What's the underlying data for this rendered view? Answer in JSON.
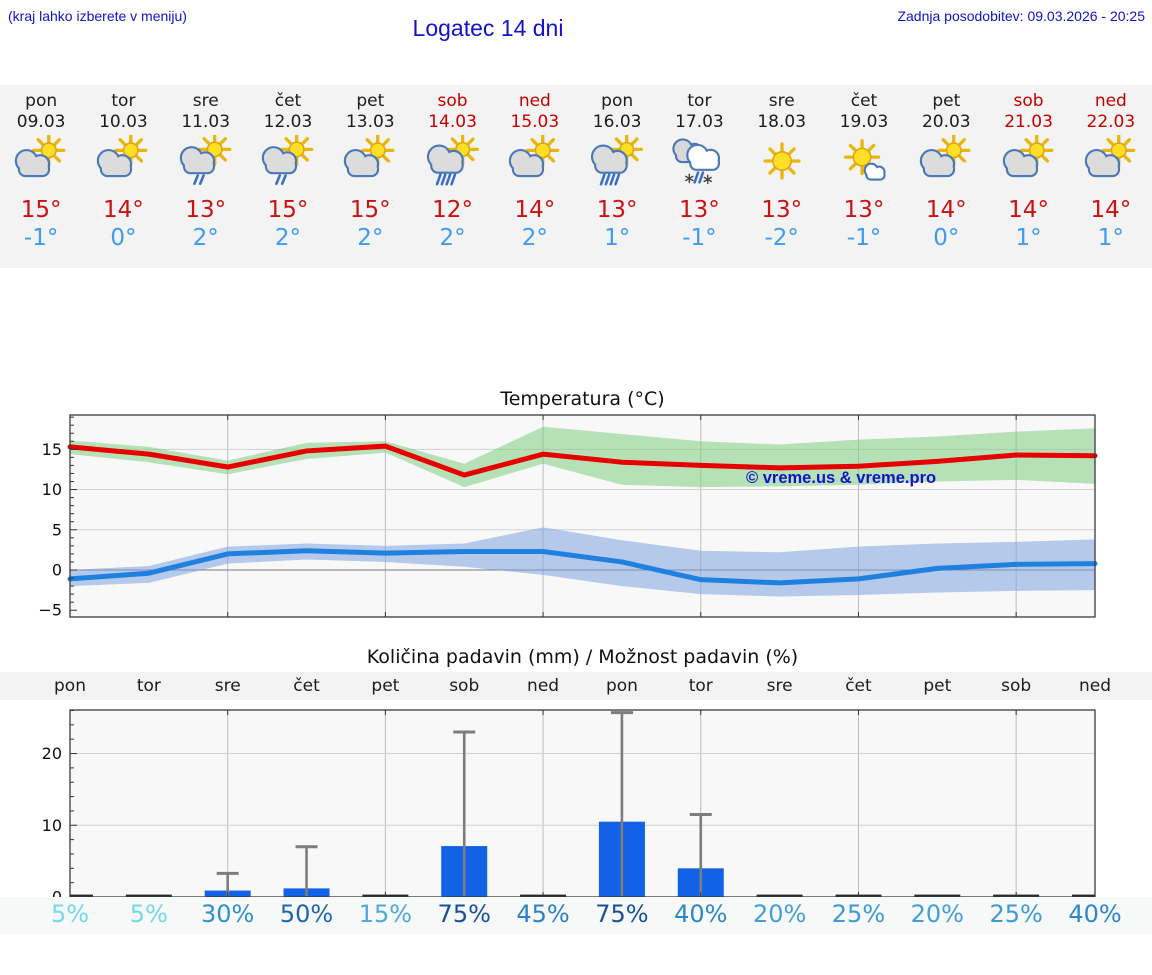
{
  "header": {
    "hint": "(kraj lahko izberete v meniju)",
    "title": "Logatec 14 dni",
    "updated": "Zadnja posodobitev: 09.03.2026 - 20:25"
  },
  "colors": {
    "accent_blue_text": "#1212cc",
    "weekend_red": "#c70000",
    "temp_max_red": "#cc1111",
    "temp_min_blue": "#3e9bef",
    "strip_background": "#f2f3f2"
  },
  "forecast": {
    "days": [
      {
        "name": "pon",
        "date": "09.03",
        "weekend": false,
        "icon": "partly",
        "tmax": "15°",
        "tmin": "-1°"
      },
      {
        "name": "tor",
        "date": "10.03",
        "weekend": false,
        "icon": "partly",
        "tmax": "14°",
        "tmin": "0°"
      },
      {
        "name": "sre",
        "date": "11.03",
        "weekend": false,
        "icon": "partly-light-rain",
        "tmax": "13°",
        "tmin": "2°"
      },
      {
        "name": "čet",
        "date": "12.03",
        "weekend": false,
        "icon": "partly-light-rain",
        "tmax": "15°",
        "tmin": "2°"
      },
      {
        "name": "pet",
        "date": "13.03",
        "weekend": false,
        "icon": "partly",
        "tmax": "15°",
        "tmin": "2°"
      },
      {
        "name": "sob",
        "date": "14.03",
        "weekend": true,
        "icon": "partly-rain",
        "tmax": "12°",
        "tmin": "2°"
      },
      {
        "name": "ned",
        "date": "15.03",
        "weekend": true,
        "icon": "partly",
        "tmax": "14°",
        "tmin": "2°"
      },
      {
        "name": "pon",
        "date": "16.03",
        "weekend": false,
        "icon": "partly-rain",
        "tmax": "13°",
        "tmin": "1°"
      },
      {
        "name": "tor",
        "date": "17.03",
        "weekend": false,
        "icon": "cloudy-sleet",
        "tmax": "13°",
        "tmin": "-1°"
      },
      {
        "name": "sre",
        "date": "18.03",
        "weekend": false,
        "icon": "sunny",
        "tmax": "13°",
        "tmin": "-2°"
      },
      {
        "name": "čet",
        "date": "19.03",
        "weekend": false,
        "icon": "mostly-sunny",
        "tmax": "13°",
        "tmin": "-1°"
      },
      {
        "name": "pet",
        "date": "20.03",
        "weekend": false,
        "icon": "partly",
        "tmax": "14°",
        "tmin": "0°"
      },
      {
        "name": "sob",
        "date": "21.03",
        "weekend": true,
        "icon": "partly",
        "tmax": "14°",
        "tmin": "1°"
      },
      {
        "name": "ned",
        "date": "22.03",
        "weekend": true,
        "icon": "partly",
        "tmax": "14°",
        "tmin": "1°"
      }
    ]
  },
  "chart_data": [
    {
      "type": "line",
      "title": "Temperatura (°C)",
      "x": [
        "09.03",
        "10.03",
        "11.03",
        "12.03",
        "13.03",
        "14.03",
        "15.03",
        "16.03",
        "17.03",
        "18.03",
        "19.03",
        "20.03",
        "21.03",
        "22.03"
      ],
      "ylim": [
        -5.8,
        19.3
      ],
      "yticks": [
        -5,
        0,
        5,
        10,
        15
      ],
      "grid_x_indices": [
        2,
        4,
        6,
        8,
        10,
        12
      ],
      "series": [
        {
          "name": "temp-max",
          "color": "#e60000",
          "values": [
            15.3,
            14.4,
            12.8,
            14.8,
            15.4,
            11.8,
            14.4,
            13.4,
            13.0,
            12.7,
            12.9,
            13.5,
            14.3,
            14.2
          ]
        },
        {
          "name": "temp-min",
          "color": "#2080e0",
          "values": [
            -1.1,
            -0.4,
            2.0,
            2.4,
            2.1,
            2.3,
            2.3,
            1.0,
            -1.2,
            -1.6,
            -1.1,
            0.2,
            0.7,
            0.8
          ]
        }
      ],
      "bands": [
        {
          "name": "temp-max-range",
          "color": "#7fcc7f",
          "hi": [
            16.1,
            15.3,
            13.6,
            15.8,
            16.0,
            13.2,
            17.8,
            16.9,
            16.0,
            15.6,
            16.2,
            16.6,
            17.2,
            17.6
          ],
          "lo": [
            14.4,
            13.4,
            11.9,
            13.8,
            14.6,
            10.3,
            13.2,
            10.6,
            10.3,
            10.4,
            10.6,
            11.0,
            11.2,
            10.7
          ]
        },
        {
          "name": "temp-min-range",
          "color": "#7da3e0",
          "hi": [
            0.0,
            0.5,
            2.9,
            3.3,
            3.0,
            3.3,
            5.3,
            3.7,
            2.4,
            2.2,
            2.9,
            3.3,
            3.5,
            3.8
          ],
          "lo": [
            -2.0,
            -1.6,
            0.8,
            1.3,
            1.0,
            0.4,
            -0.6,
            -2.0,
            -3.0,
            -3.3,
            -3.1,
            -2.8,
            -2.6,
            -2.5
          ]
        }
      ],
      "watermark": "© vreme.us & vreme.pro"
    },
    {
      "type": "bar",
      "title": "Količina padavin (mm) / Možnost padavin (%)",
      "categories": [
        "pon",
        "tor",
        "sre",
        "čet",
        "pet",
        "sob",
        "ned",
        "pon",
        "tor",
        "sre",
        "čet",
        "pet",
        "sob",
        "ned"
      ],
      "values": [
        0.05,
        0.05,
        0.9,
        1.2,
        0.1,
        7.1,
        0.1,
        10.5,
        4.0,
        0.1,
        0.1,
        0.15,
        0.1,
        0.15
      ],
      "whisker_max": [
        0,
        0,
        3.3,
        7.0,
        0,
        23.0,
        0,
        25.7,
        11.5,
        0,
        0,
        0,
        0,
        0
      ],
      "bar_color": "#1261e6",
      "ylim": [
        0,
        26
      ],
      "yticks": [
        0,
        10,
        20
      ],
      "pop_percent": [
        "5%",
        "5%",
        "30%",
        "50%",
        "15%",
        "75%",
        "45%",
        "75%",
        "40%",
        "20%",
        "25%",
        "20%",
        "25%",
        "40%"
      ],
      "pop_colors": [
        "#74d8e6",
        "#74d8e6",
        "#3090cb",
        "#1f65ad",
        "#4fa9db",
        "#17509b",
        "#2a82c3",
        "#17509b",
        "#2d87c7",
        "#43a0d6",
        "#3d9ad2",
        "#43a0d6",
        "#3d9ad2",
        "#2d87c7"
      ]
    }
  ]
}
